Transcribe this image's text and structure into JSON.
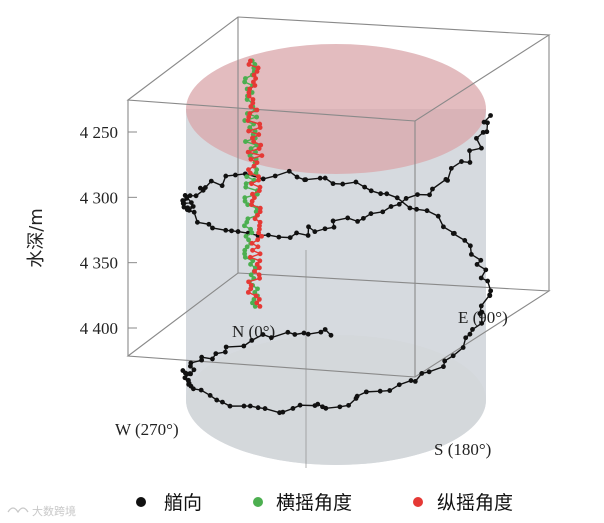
{
  "chart_data": {
    "type": "line",
    "subtype": "3d-trajectory",
    "ylabel": "水深/m",
    "depth_range": [
      4230,
      4420
    ],
    "depth_ticks": [
      "4 250",
      "4 300",
      "4 350",
      "4 400"
    ],
    "depth_tick_values": [
      4250,
      4300,
      4350,
      4400
    ],
    "directions": {
      "north": "N (0°)",
      "east": "E (90°)",
      "south": "S (180°)",
      "west": "W (270°)"
    },
    "grid": false,
    "legend_position": "bottom",
    "series": [
      {
        "name": "艏向",
        "color": "#111111",
        "points": [
          {
            "heading_deg": 180,
            "depth": 4418
          },
          {
            "heading_deg": 200,
            "depth": 4417
          },
          {
            "heading_deg": 230,
            "depth": 4415
          },
          {
            "heading_deg": 255,
            "depth": 4410
          },
          {
            "heading_deg": 270,
            "depth": 4405
          },
          {
            "heading_deg": 290,
            "depth": 4398
          },
          {
            "heading_deg": 320,
            "depth": 4392
          },
          {
            "heading_deg": 345,
            "depth": 4385
          },
          {
            "heading_deg": 360,
            "depth": 4380
          },
          {
            "heading_deg": 20,
            "depth": 4374
          },
          {
            "heading_deg": 45,
            "depth": 4366
          },
          {
            "heading_deg": 70,
            "depth": 4358
          },
          {
            "heading_deg": 90,
            "depth": 4350
          },
          {
            "heading_deg": 110,
            "depth": 4343
          },
          {
            "heading_deg": 135,
            "depth": 4335
          },
          {
            "heading_deg": 160,
            "depth": 4327
          },
          {
            "heading_deg": 180,
            "depth": 4320
          },
          {
            "heading_deg": 200,
            "depth": 4313
          },
          {
            "heading_deg": 230,
            "depth": 4305
          },
          {
            "heading_deg": 255,
            "depth": 4298
          },
          {
            "heading_deg": 270,
            "depth": 4292
          },
          {
            "heading_deg": 290,
            "depth": 4285
          },
          {
            "heading_deg": 320,
            "depth": 4278
          },
          {
            "heading_deg": 345,
            "depth": 4270
          },
          {
            "heading_deg": 360,
            "depth": 4262
          },
          {
            "heading_deg": 20,
            "depth": 4255
          },
          {
            "heading_deg": 45,
            "depth": 4248
          },
          {
            "heading_deg": 70,
            "depth": 4240
          },
          {
            "heading_deg": 90,
            "depth": 4234
          }
        ]
      },
      {
        "name": "横摇角度",
        "color": "#4caf50",
        "depth_from": 4228,
        "depth_to": 4385
      },
      {
        "name": "纵摇角度",
        "color": "#e53935",
        "depth_from": 4228,
        "depth_to": 4385
      }
    ],
    "legend": [
      {
        "label": "艏向",
        "color": "#111111"
      },
      {
        "label": "横摇角度",
        "color": "#4caf50"
      },
      {
        "label": "纵摇角度",
        "color": "#e53935"
      }
    ]
  },
  "watermark": "大数跨境",
  "watermark_icon": "logo-icon"
}
